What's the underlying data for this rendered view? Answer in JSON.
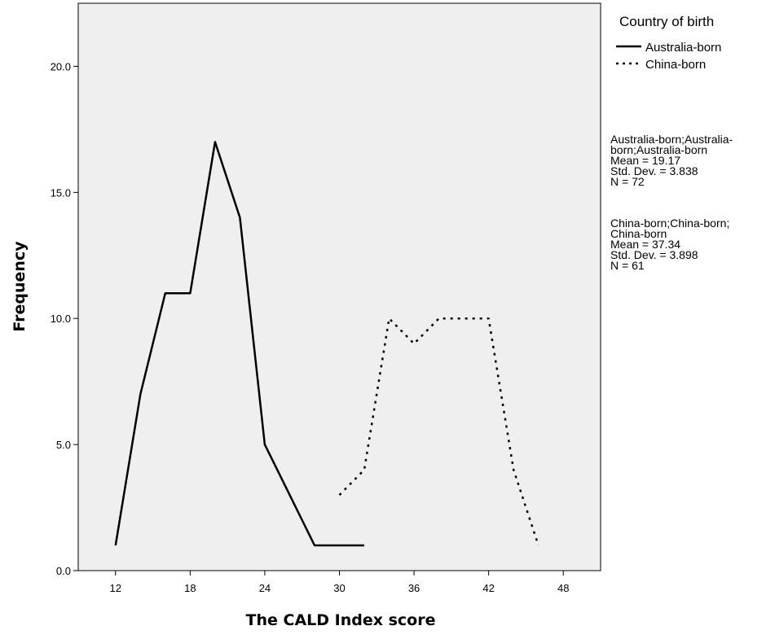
{
  "chart_data": {
    "type": "line",
    "title": "",
    "xlabel": "The CALD Index score",
    "ylabel": "Frequency",
    "xlim": [
      9,
      51
    ],
    "ylim": [
      0,
      22.5
    ],
    "xticks": [
      12,
      18,
      24,
      30,
      36,
      42,
      48
    ],
    "yticks": [
      0,
      5,
      10,
      15,
      20
    ],
    "ytick_labels": [
      "0.0",
      "5.0",
      "10.0",
      "15.0",
      "20.0"
    ],
    "grid": false,
    "background": "#efefef",
    "legend": {
      "title": "Country of birth",
      "placement": "right"
    },
    "series": [
      {
        "name": "Australia-born",
        "style": "solid",
        "color": "#000000",
        "x": [
          12,
          14,
          16,
          18,
          20,
          22,
          24,
          26,
          28,
          30,
          32
        ],
        "y": [
          1,
          7,
          11,
          11,
          17,
          14,
          5,
          3,
          1,
          1,
          1
        ]
      },
      {
        "name": "China-born",
        "style": "dotted",
        "color": "#000000",
        "x": [
          30,
          32,
          34,
          36,
          38,
          40,
          42,
          44,
          46
        ],
        "y": [
          3,
          4,
          10,
          9,
          10,
          10,
          10,
          4,
          1
        ]
      }
    ],
    "stats": [
      {
        "label": "Australia-born;Australia-born;Australia-born",
        "lines": [
          "Australia-born;Australia-",
          "born;Australia-born",
          "Mean = 19.17",
          "Std. Dev. = 3.838",
          "N = 72"
        ]
      },
      {
        "label": "China-born;China-born;China-born",
        "lines": [
          "China-born;China-born;",
          "China-born",
          "Mean = 37.34",
          "Std. Dev. = 3.898",
          "N = 61"
        ]
      }
    ]
  }
}
